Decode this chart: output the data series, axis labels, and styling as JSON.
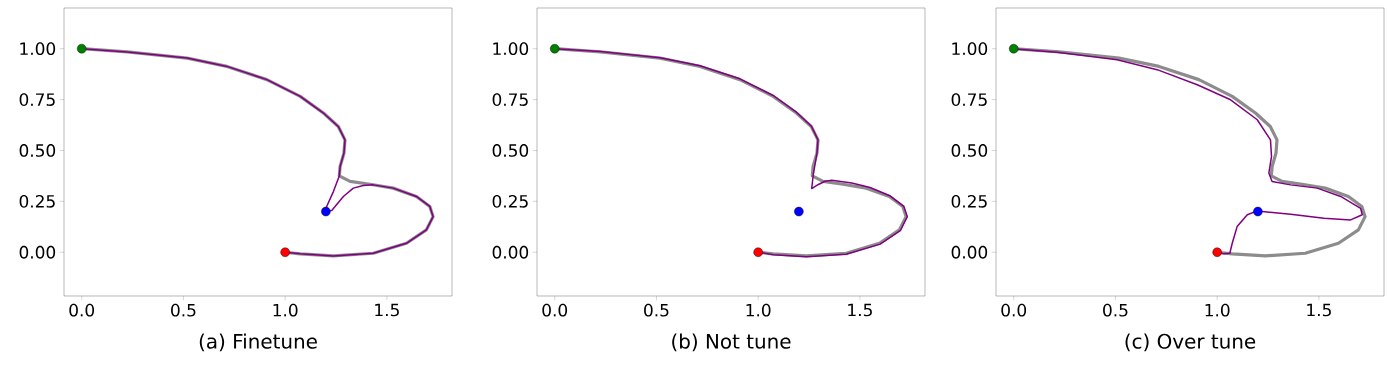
{
  "chart_data": [
    {
      "type": "line",
      "xlabel": "(a) Finetune",
      "xlim": [
        -0.087,
        1.82
      ],
      "ylim": [
        -0.215,
        1.2
      ],
      "xticks": [
        {
          "value": 0,
          "label": "0.0"
        },
        {
          "value": 0.5,
          "label": "0.5"
        },
        {
          "value": 1,
          "label": "1.0"
        },
        {
          "value": 1.5,
          "label": "1.5"
        }
      ],
      "yticks": [
        {
          "value": 0,
          "label": "0.00"
        },
        {
          "value": 0.25,
          "label": "0.25"
        },
        {
          "value": 0.5,
          "label": "0.50"
        },
        {
          "value": 0.75,
          "label": "0.75"
        },
        {
          "value": 1,
          "label": "1.00"
        }
      ],
      "series": [
        {
          "type": "line",
          "color": "#8c8c8c",
          "x": [
            0,
            0.224,
            0.518,
            0.714,
            0.91,
            1.074,
            1.188,
            1.261,
            1.294,
            1.289,
            1.27,
            1.266,
            1.319,
            1.417,
            1.531,
            1.645,
            1.711,
            1.727,
            1.694,
            1.596,
            1.433,
            1.237,
            1.074,
            1.0
          ],
          "values": [
            1,
            0.984,
            0.954,
            0.913,
            0.848,
            0.766,
            0.684,
            0.618,
            0.552,
            0.487,
            0.421,
            0.375,
            0.348,
            0.334,
            0.315,
            0.274,
            0.225,
            0.175,
            0.11,
            0.044,
            -0.005,
            -0.018,
            -0.008,
            0
          ]
        },
        {
          "color": "#800080",
          "x": [
            0,
            0.224,
            0.518,
            0.714,
            0.91,
            1.074,
            1.188,
            1.261,
            1.294,
            1.289,
            1.27,
            1.266,
            1.237,
            1.204,
            1.2,
            1.229,
            1.286,
            1.335,
            1.384,
            1.433,
            1.531,
            1.645,
            1.711,
            1.727,
            1.694,
            1.596,
            1.433,
            1.237,
            1.074,
            1.0
          ],
          "values": [
            1,
            0.984,
            0.954,
            0.913,
            0.848,
            0.766,
            0.684,
            0.618,
            0.552,
            0.487,
            0.421,
            0.375,
            0.298,
            0.225,
            0.203,
            0.205,
            0.274,
            0.315,
            0.328,
            0.331,
            0.315,
            0.274,
            0.225,
            0.175,
            0.11,
            0.044,
            -0.005,
            -0.018,
            -0.008,
            0
          ]
        },
        {
          "type": "scatter",
          "color": "#008000",
          "x": [
            0
          ],
          "values": [
            1
          ]
        },
        {
          "type": "scatter",
          "color": "#ff0000",
          "x": [
            1
          ],
          "values": [
            0
          ]
        },
        {
          "type": "scatter",
          "color": "#0000ff",
          "x": [
            1.2
          ],
          "values": [
            0.2
          ]
        }
      ]
    },
    {
      "type": "line",
      "xlabel": "(b) Not tune",
      "xlim": [
        -0.087,
        1.82
      ],
      "ylim": [
        -0.215,
        1.2
      ],
      "xticks": [
        {
          "value": 0,
          "label": "0.0"
        },
        {
          "value": 0.5,
          "label": "0.5"
        },
        {
          "value": 1,
          "label": "1.0"
        },
        {
          "value": 1.5,
          "label": "1.5"
        }
      ],
      "yticks": [
        {
          "value": 0,
          "label": "0.00"
        },
        {
          "value": 0.25,
          "label": "0.25"
        },
        {
          "value": 0.5,
          "label": "0.50"
        },
        {
          "value": 0.75,
          "label": "0.75"
        },
        {
          "value": 1,
          "label": "1.00"
        }
      ],
      "series": [
        {
          "type": "line",
          "color": "#8c8c8c",
          "x": [
            0,
            0.224,
            0.518,
            0.714,
            0.91,
            1.074,
            1.188,
            1.261,
            1.294,
            1.289,
            1.27,
            1.266,
            1.319,
            1.417,
            1.531,
            1.645,
            1.711,
            1.727,
            1.694,
            1.596,
            1.433,
            1.237,
            1.074,
            1.0
          ],
          "values": [
            1,
            0.984,
            0.954,
            0.913,
            0.848,
            0.766,
            0.684,
            0.618,
            0.552,
            0.487,
            0.421,
            0.375,
            0.348,
            0.334,
            0.315,
            0.274,
            0.225,
            0.175,
            0.11,
            0.044,
            -0.005,
            -0.018,
            -0.008,
            0
          ]
        },
        {
          "color": "#800080",
          "x": [
            0,
            0.224,
            0.518,
            0.714,
            0.91,
            1.074,
            1.188,
            1.261,
            1.294,
            1.289,
            1.271,
            1.263,
            1.296,
            1.329,
            1.362,
            1.46,
            1.55,
            1.65,
            1.716,
            1.733,
            1.7,
            1.6,
            1.433,
            1.237,
            1.074,
            1.0
          ],
          "values": [
            1,
            0.986,
            0.956,
            0.916,
            0.852,
            0.77,
            0.688,
            0.62,
            0.552,
            0.487,
            0.382,
            0.313,
            0.333,
            0.349,
            0.354,
            0.34,
            0.318,
            0.276,
            0.225,
            0.175,
            0.108,
            0.04,
            -0.01,
            -0.022,
            -0.012,
            0
          ]
        },
        {
          "type": "scatter",
          "color": "#008000",
          "x": [
            0
          ],
          "values": [
            1
          ]
        },
        {
          "type": "scatter",
          "color": "#ff0000",
          "x": [
            1
          ],
          "values": [
            0
          ]
        },
        {
          "type": "scatter",
          "color": "#0000ff",
          "x": [
            1.2
          ],
          "values": [
            0.2
          ]
        }
      ]
    },
    {
      "type": "line",
      "xlabel": "(c) Over tune",
      "xlim": [
        -0.087,
        1.82
      ],
      "ylim": [
        -0.215,
        1.2
      ],
      "xticks": [
        {
          "value": 0,
          "label": "0.0"
        },
        {
          "value": 0.5,
          "label": "0.5"
        },
        {
          "value": 1,
          "label": "1.0"
        },
        {
          "value": 1.5,
          "label": "1.5"
        }
      ],
      "yticks": [
        {
          "value": 0,
          "label": "0.00"
        },
        {
          "value": 0.25,
          "label": "0.25"
        },
        {
          "value": 0.5,
          "label": "0.50"
        },
        {
          "value": 0.75,
          "label": "0.75"
        },
        {
          "value": 1,
          "label": "1.00"
        }
      ],
      "series": [
        {
          "type": "line",
          "color": "#8c8c8c",
          "x": [
            0,
            0.224,
            0.518,
            0.714,
            0.91,
            1.074,
            1.188,
            1.261,
            1.294,
            1.289,
            1.27,
            1.266,
            1.319,
            1.417,
            1.531,
            1.645,
            1.711,
            1.727,
            1.694,
            1.596,
            1.433,
            1.237,
            1.074,
            1.0
          ],
          "values": [
            1,
            0.984,
            0.954,
            0.913,
            0.848,
            0.766,
            0.684,
            0.618,
            0.552,
            0.487,
            0.421,
            0.375,
            0.348,
            0.334,
            0.315,
            0.274,
            0.225,
            0.175,
            0.11,
            0.044,
            -0.005,
            -0.018,
            -0.008,
            0
          ]
        },
        {
          "color": "#800080",
          "x": [
            0,
            0.213,
            0.508,
            0.705,
            0.902,
            1.066,
            1.197,
            1.262,
            1.267,
            1.254,
            1.27,
            1.361,
            1.492,
            1.607,
            1.705,
            1.713,
            1.656,
            1.525,
            1.361,
            1.246,
            1.197,
            1.148,
            1.098,
            1.074,
            1.062,
            1.033,
            1.0
          ],
          "values": [
            1,
            0.982,
            0.946,
            0.897,
            0.823,
            0.749,
            0.651,
            0.552,
            0.47,
            0.389,
            0.348,
            0.331,
            0.315,
            0.274,
            0.216,
            0.184,
            0.159,
            0.167,
            0.187,
            0.198,
            0.203,
            0.184,
            0.126,
            0.044,
            -0.005,
            -0.008,
            0
          ]
        },
        {
          "type": "scatter",
          "color": "#008000",
          "x": [
            0
          ],
          "values": [
            1
          ]
        },
        {
          "type": "scatter",
          "color": "#ff0000",
          "x": [
            1
          ],
          "values": [
            0
          ]
        },
        {
          "type": "scatter",
          "color": "#0000ff",
          "x": [
            1.2
          ],
          "values": [
            0.2
          ]
        }
      ]
    }
  ]
}
